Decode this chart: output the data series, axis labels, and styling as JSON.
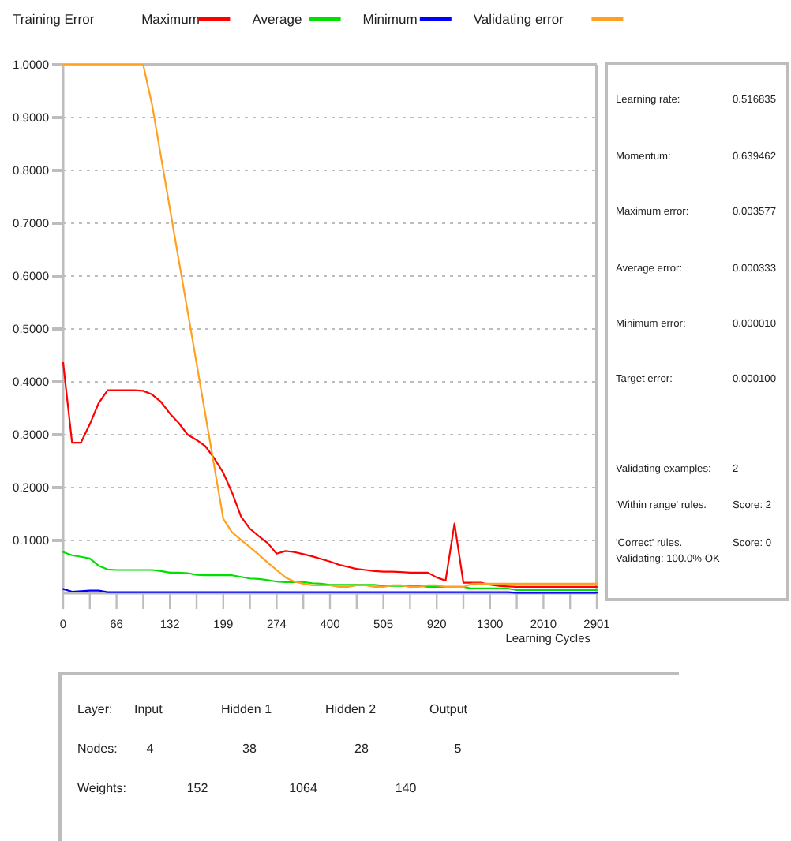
{
  "chart_data": [
    {
      "type": "line",
      "legend_title": "Training Error",
      "xlabel": "Learning Cycles",
      "legend": "top",
      "grid": "y",
      "line_style": "solid",
      "categories": [
        "0",
        null,
        null,
        null,
        null,
        null,
        "66",
        null,
        null,
        null,
        null,
        null,
        "132",
        null,
        null,
        null,
        null,
        null,
        "199",
        null,
        null,
        null,
        null,
        null,
        "274",
        null,
        null,
        null,
        null,
        null,
        "400",
        null,
        null,
        null,
        null,
        null,
        "505",
        null,
        null,
        null,
        null,
        null,
        "920",
        null,
        null,
        null,
        null,
        null,
        "1300",
        null,
        null,
        null,
        null,
        null,
        "2010",
        null,
        null,
        null,
        null,
        null,
        "2901"
      ],
      "ylim": [
        0,
        1
      ],
      "yticks": [
        {
          "value": 0.1,
          "label": "0.1000"
        },
        {
          "value": 0.2,
          "label": "0.2000"
        },
        {
          "value": 0.3,
          "label": "0.3000"
        },
        {
          "value": 0.4,
          "label": "0.4000"
        },
        {
          "value": 0.5,
          "label": "0.5000"
        },
        {
          "value": 0.6,
          "label": "0.6000"
        },
        {
          "value": 0.7,
          "label": "0.7000"
        },
        {
          "value": 0.8,
          "label": "0.8000"
        },
        {
          "value": 0.9,
          "label": "0.9000"
        },
        {
          "value": 1,
          "label": "1.0000"
        }
      ],
      "series": [
        {
          "name": "Maximum",
          "color": "#ff0000",
          "values": [
            0.436,
            0.285,
            0.285,
            0.32,
            0.36,
            0.384,
            0.384,
            0.384,
            0.384,
            0.383,
            0.376,
            0.362,
            0.34,
            0.322,
            0.3,
            0.29,
            0.278,
            0.255,
            0.228,
            0.19,
            0.145,
            0.122,
            0.108,
            0.095,
            0.075,
            0.08,
            0.078,
            0.074,
            0.07,
            0.065,
            0.06,
            0.054,
            0.05,
            0.046,
            0.044,
            0.042,
            0.041,
            0.041,
            0.04,
            0.039,
            0.039,
            0.039,
            0.03,
            0.024,
            0.132,
            0.02,
            0.02,
            0.02,
            0.016,
            0.014,
            0.013,
            0.012,
            0.012,
            0.012,
            0.012,
            0.012,
            0.012,
            0.012,
            0.012,
            0.012,
            0.012
          ]
        },
        {
          "name": "Average",
          "color": "#00e000",
          "values": [
            0.078,
            0.072,
            0.069,
            0.066,
            0.052,
            0.045,
            0.044,
            0.044,
            0.044,
            0.044,
            0.044,
            0.042,
            0.039,
            0.039,
            0.038,
            0.035,
            0.034,
            0.034,
            0.034,
            0.034,
            0.031,
            0.028,
            0.027,
            0.025,
            0.022,
            0.021,
            0.021,
            0.021,
            0.019,
            0.018,
            0.016,
            0.016,
            0.016,
            0.016,
            0.016,
            0.016,
            0.014,
            0.014,
            0.014,
            0.014,
            0.014,
            0.012,
            0.012,
            0.012,
            0.012,
            0.012,
            0.009,
            0.009,
            0.009,
            0.009,
            0.009,
            0.006,
            0.006,
            0.006,
            0.006,
            0.006,
            0.006,
            0.006,
            0.006,
            0.006,
            0.006
          ]
        },
        {
          "name": "Minimum",
          "color": "#0000ff",
          "values": [
            0.008,
            0.003,
            0.004,
            0.005,
            0.005,
            0.002,
            0.002,
            0.002,
            0.002,
            0.002,
            0.002,
            0.002,
            0.002,
            0.002,
            0.002,
            0.002,
            0.002,
            0.002,
            0.002,
            0.002,
            0.002,
            0.002,
            0.002,
            0.002,
            0.002,
            0.002,
            0.002,
            0.002,
            0.002,
            0.002,
            0.002,
            0.002,
            0.002,
            0.002,
            0.002,
            0.002,
            0.002,
            0.002,
            0.002,
            0.002,
            0.002,
            0.002,
            0.002,
            0.002,
            0.002,
            0.002,
            0.002,
            0.002,
            0.002,
            0.002,
            0.002,
            0.001,
            0.001,
            0.001,
            0.001,
            0.001,
            0.001,
            0.001,
            0.001,
            0.001,
            0.001
          ]
        },
        {
          "name": "Validating error",
          "color": "#ffa020",
          "values": [
            1,
            1,
            1,
            1,
            1,
            1,
            1,
            1,
            1,
            1,
            0.924,
            0.826,
            0.728,
            0.63,
            0.533,
            0.435,
            0.337,
            0.239,
            0.141,
            0.115,
            0.101,
            0.087,
            0.073,
            0.058,
            0.044,
            0.03,
            0.022,
            0.018,
            0.015,
            0.015,
            0.015,
            0.012,
            0.012,
            0.015,
            0.015,
            0.012,
            0.012,
            0.015,
            0.015,
            0.012,
            0.012,
            0.015,
            0.015,
            0.012,
            0.012,
            0.012,
            0.018,
            0.018,
            0.018,
            0.018,
            0.018,
            0.018,
            0.018,
            0.018,
            0.018,
            0.018,
            0.018,
            0.018,
            0.018,
            0.018,
            0.018
          ]
        }
      ]
    },
    {
      "type": "other",
      "annotations": [
        "Learning rate:",
        "0.516835",
        "Momentum:",
        "0.639462",
        "Maximum error:",
        "0.003577",
        "Average error:",
        "0.000333",
        "Minimum error:",
        "0.000010",
        "Target error:",
        "0.000100",
        "Validating examples:",
        "2",
        "'Within range' rules.",
        "Score: 2",
        "'Correct' rules.",
        "Score: 0",
        "Validating: 100.0% OK"
      ]
    },
    {
      "type": "other",
      "annotations": [
        "Layer:",
        "Input",
        "Hidden 1",
        "Hidden 2",
        "Output",
        "Nodes:",
        "4",
        "38",
        "28",
        "5",
        "Weights:",
        "152",
        "1064",
        "140"
      ]
    }
  ]
}
